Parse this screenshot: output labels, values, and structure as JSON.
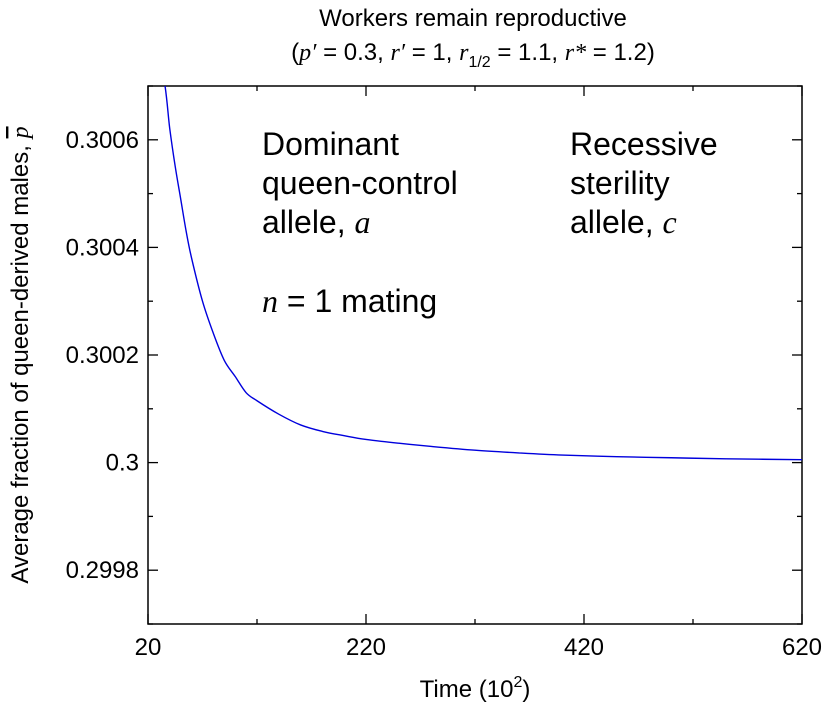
{
  "chart_data": {
    "type": "line",
    "title": "Workers remain reproductive",
    "subtitle": {
      "open": "(",
      "p_sym": "p′",
      "p_val": " = 0.3, ",
      "r_sym": "r′",
      "r_val": " = 1, ",
      "rhalf_sym": "r",
      "rhalf_sub": "1/2",
      "rhalf_val": " = 1.1, ",
      "rstar_sym": "r*",
      "rstar_val": " = 1.2)"
    },
    "xlabel": "Time (10",
    "xlabel_sup": "2",
    "xlabel_end": ")",
    "ylabel": "Average fraction of queen-derived males, ",
    "ylabel_sym": "p",
    "xlim": [
      20,
      620
    ],
    "ylim": [
      0.2997,
      0.3007
    ],
    "xticks": [
      20,
      220,
      420,
      620
    ],
    "xtick_labels": [
      "20",
      "220",
      "420",
      "620"
    ],
    "x_minor_step": 100,
    "yticks": [
      0.2998,
      0.3,
      0.3002,
      0.3004,
      0.3006
    ],
    "ytick_labels": [
      "0.2998",
      "0.3",
      "0.3002",
      "0.3004",
      "0.3006"
    ],
    "y_minor_step": 0.0001,
    "grid": false,
    "series": [
      {
        "color": "#0000dd",
        "x": [
          20,
          34,
          40,
          45,
          50,
          55,
          60,
          70,
          80,
          90,
          100,
          110,
          120,
          140,
          160,
          180,
          200,
          220,
          250,
          280,
          320,
          360,
          400,
          450,
          500,
          550,
          620
        ],
        "y": [
          0.30082,
          0.30072,
          0.30062,
          0.30055,
          0.30049,
          0.30043,
          0.30038,
          0.3003,
          0.30024,
          0.30019,
          0.30016,
          0.30013,
          0.300115,
          0.30009,
          0.30007,
          0.300058,
          0.30005,
          0.300043,
          0.300036,
          0.30003,
          0.300023,
          0.300018,
          0.300014,
          0.300011,
          0.300009,
          0.300007,
          0.3000055
        ]
      }
    ],
    "annotations": {
      "left_line1": "Dominant",
      "left_line2": "queen-control",
      "left_line3": "allele, ",
      "left_sym": "a",
      "right_line1": "Recessive",
      "right_line2": "sterility",
      "right_line3": "allele, ",
      "right_sym": "c",
      "mating_sym": "n",
      "mating_text": " = 1 mating"
    }
  }
}
